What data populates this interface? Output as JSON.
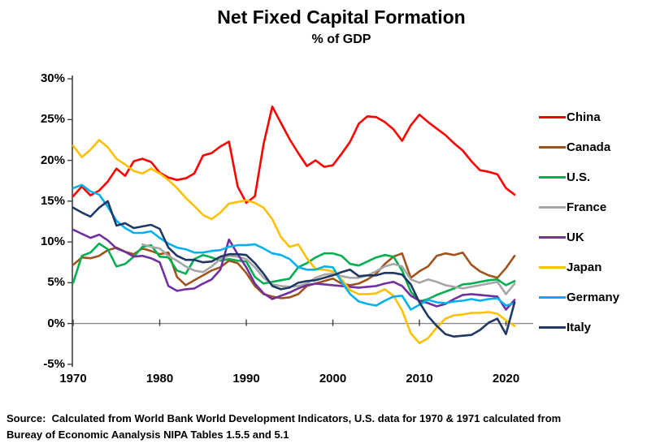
{
  "header": {
    "title": "Net Fixed Capital Formation",
    "subtitle": "% of GDP"
  },
  "source": {
    "line1": "Source:  Calculated from World Bank World Development Indicators, U.S. data for 1970 & 1971 calculated from",
    "line2": "Bureay of Economic Aanalysis NIPA Tables 1.5.5 and 5.1"
  },
  "chart_data": {
    "type": "line",
    "title": "Net Fixed Capital Formation",
    "subtitle": "% of GDP",
    "xlabel": "",
    "ylabel": "",
    "ylim": [
      -5,
      30
    ],
    "xlim": [
      1970,
      2022
    ],
    "grid": "zero-line-only",
    "legend_position": "right",
    "axis_color": "#404040",
    "zero_line_color": "#8c8c8c",
    "y_ticks": [
      30,
      25,
      20,
      15,
      10,
      5,
      0,
      -5
    ],
    "y_tick_labels": [
      "30%",
      "25%",
      "20%",
      "15%",
      "10%",
      "5%",
      "0%",
      "-5%"
    ],
    "x_ticks": [
      1970,
      1980,
      1990,
      2000,
      2010,
      2020
    ],
    "x_tick_labels": [
      "1970",
      "1980",
      "1990",
      "2000",
      "2010",
      "2020"
    ],
    "x": [
      1970,
      1971,
      1972,
      1973,
      1974,
      1975,
      1976,
      1977,
      1978,
      1979,
      1980,
      1981,
      1982,
      1983,
      1984,
      1985,
      1986,
      1987,
      1988,
      1989,
      1990,
      1991,
      1992,
      1993,
      1994,
      1995,
      1996,
      1997,
      1998,
      1999,
      2000,
      2001,
      2002,
      2003,
      2004,
      2005,
      2006,
      2007,
      2008,
      2009,
      2010,
      2011,
      2012,
      2013,
      2014,
      2015,
      2016,
      2017,
      2018,
      2019,
      2020,
      2021
    ],
    "series": [
      {
        "name": "China",
        "color": "#FF0000",
        "values": [
          15.6,
          16.8,
          15.7,
          16.3,
          17.4,
          19.0,
          18.1,
          19.9,
          20.2,
          19.8,
          18.5,
          17.9,
          17.6,
          17.8,
          18.4,
          20.6,
          20.9,
          21.7,
          22.3,
          16.8,
          14.8,
          15.6,
          22.0,
          26.6,
          24.6,
          22.6,
          20.9,
          19.3,
          20.0,
          19.2,
          19.4,
          20.8,
          22.3,
          24.5,
          25.4,
          25.3,
          24.7,
          23.8,
          22.4,
          24.3,
          25.6,
          24.7,
          23.9,
          23.1,
          22.1,
          21.2,
          19.9,
          18.8,
          18.6,
          18.3,
          16.6,
          15.8
        ]
      },
      {
        "name": "Canada",
        "color": "#A0521D",
        "values": [
          7.2,
          8.1,
          8.0,
          8.3,
          9.0,
          9.3,
          8.8,
          8.5,
          9.2,
          8.9,
          8.5,
          8.7,
          5.7,
          4.7,
          5.3,
          5.9,
          6.5,
          6.9,
          7.7,
          7.4,
          6.2,
          4.6,
          3.6,
          3.3,
          3.1,
          3.2,
          3.6,
          4.6,
          4.9,
          5.2,
          5.5,
          4.9,
          4.7,
          4.9,
          5.4,
          6.1,
          7.3,
          8.2,
          8.6,
          5.6,
          6.4,
          7.0,
          8.3,
          8.6,
          8.4,
          8.7,
          7.2,
          6.4,
          5.9,
          5.6,
          6.8,
          8.3
        ]
      },
      {
        "name": "U.S.",
        "color": "#00B050",
        "values": [
          5.0,
          8.3,
          8.7,
          9.8,
          9.1,
          7.0,
          7.3,
          8.2,
          9.4,
          9.6,
          8.2,
          8.1,
          6.5,
          6.1,
          7.9,
          8.4,
          8.1,
          7.7,
          7.9,
          7.7,
          7.6,
          5.7,
          4.9,
          5.1,
          5.3,
          5.5,
          6.9,
          7.4,
          8.1,
          8.6,
          8.6,
          8.3,
          7.3,
          7.1,
          7.6,
          8.1,
          8.4,
          8.2,
          6.5,
          3.9,
          2.7,
          3.0,
          3.5,
          3.9,
          4.3,
          4.8,
          4.9,
          5.1,
          5.3,
          5.4,
          4.7,
          5.2
        ]
      },
      {
        "name": "France",
        "color": "#A6A6A6",
        "values": [
          null,
          null,
          null,
          null,
          null,
          null,
          null,
          null,
          9.7,
          9.4,
          9.2,
          8.3,
          7.7,
          7.0,
          6.5,
          6.3,
          7.0,
          7.9,
          8.3,
          8.2,
          7.9,
          6.9,
          5.6,
          4.8,
          4.6,
          4.5,
          4.6,
          4.9,
          5.6,
          6.0,
          6.1,
          5.8,
          5.6,
          5.6,
          5.9,
          6.4,
          7.0,
          7.3,
          7.0,
          5.4,
          5.0,
          5.4,
          5.1,
          4.7,
          4.5,
          4.3,
          4.5,
          4.7,
          4.9,
          5.1,
          3.6,
          4.9
        ]
      },
      {
        "name": "UK",
        "color": "#7030A0",
        "values": [
          11.5,
          11.0,
          10.5,
          10.9,
          10.2,
          9.2,
          8.8,
          8.2,
          8.3,
          8.0,
          7.5,
          4.6,
          4.0,
          4.2,
          4.3,
          4.9,
          5.4,
          6.6,
          10.3,
          8.5,
          6.9,
          4.9,
          3.7,
          3.0,
          3.4,
          3.8,
          4.3,
          4.7,
          4.9,
          4.8,
          4.7,
          4.6,
          4.5,
          4.4,
          4.5,
          4.6,
          4.9,
          5.1,
          4.6,
          3.4,
          2.8,
          2.5,
          2.1,
          2.4,
          3.0,
          3.5,
          3.6,
          3.5,
          3.4,
          3.3,
          1.7,
          2.9
        ]
      },
      {
        "name": "Japan",
        "color": "#FFC000",
        "values": [
          21.8,
          20.4,
          21.3,
          22.5,
          21.6,
          20.2,
          19.5,
          18.7,
          18.4,
          19.0,
          18.4,
          17.6,
          16.6,
          15.4,
          14.4,
          13.3,
          12.8,
          13.6,
          14.7,
          14.9,
          15.1,
          14.8,
          14.2,
          12.8,
          10.6,
          9.4,
          9.7,
          8.0,
          6.7,
          6.6,
          6.4,
          5.4,
          4.1,
          3.6,
          3.6,
          3.7,
          4.2,
          3.4,
          1.6,
          -1.2,
          -2.4,
          -1.8,
          -0.5,
          0.6,
          1.0,
          1.1,
          1.3,
          1.3,
          1.4,
          1.2,
          0.4,
          -0.3
        ]
      },
      {
        "name": "Germany",
        "color": "#00B0F0",
        "values": [
          16.6,
          17.0,
          16.2,
          15.8,
          14.3,
          12.6,
          11.7,
          11.1,
          11.1,
          11.3,
          10.5,
          9.8,
          9.3,
          9.1,
          8.7,
          8.7,
          8.9,
          9.0,
          9.4,
          9.6,
          9.6,
          9.7,
          9.2,
          8.6,
          8.4,
          7.9,
          6.9,
          6.6,
          6.6,
          7.0,
          6.9,
          5.1,
          3.6,
          2.7,
          2.4,
          2.2,
          2.8,
          3.3,
          3.4,
          1.7,
          2.3,
          2.9,
          2.6,
          2.5,
          2.7,
          2.8,
          3.0,
          2.8,
          3.0,
          3.1,
          2.2,
          2.5
        ]
      },
      {
        "name": "Italy",
        "color": "#1F3864",
        "values": [
          14.2,
          13.6,
          13.1,
          14.2,
          15.0,
          12.0,
          12.3,
          11.7,
          11.9,
          12.1,
          11.6,
          9.3,
          8.3,
          7.8,
          7.8,
          7.5,
          7.6,
          8.2,
          8.5,
          8.5,
          8.4,
          7.4,
          6.1,
          4.6,
          4.2,
          4.4,
          5.0,
          5.2,
          5.3,
          5.6,
          5.9,
          6.3,
          6.6,
          5.8,
          5.9,
          5.9,
          6.2,
          6.2,
          6.0,
          4.8,
          2.6,
          0.9,
          -0.3,
          -1.3,
          -1.6,
          -1.5,
          -1.4,
          -0.8,
          0.1,
          0.6,
          -1.3,
          2.6
        ]
      }
    ]
  }
}
